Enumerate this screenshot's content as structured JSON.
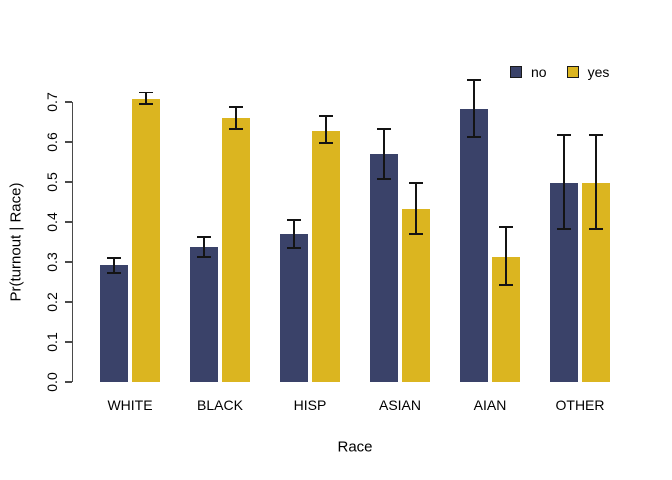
{
  "chart_data": {
    "type": "bar",
    "title": "",
    "xlabel": "Race",
    "ylabel": "Pr(turnout | Race)",
    "categories": [
      "WHITE",
      "BLACK",
      "HISP",
      "ASIAN",
      "AIAN",
      "OTHER"
    ],
    "series": [
      {
        "name": "no",
        "color": "#3A4269",
        "values": [
          0.293,
          0.338,
          0.37,
          0.57,
          0.683,
          0.498
        ],
        "ci_low": [
          0.273,
          0.313,
          0.335,
          0.507,
          0.613,
          0.383
        ],
        "ci_high": [
          0.31,
          0.363,
          0.405,
          0.633,
          0.755,
          0.618
        ]
      },
      {
        "name": "yes",
        "color": "#DBB520",
        "values": [
          0.707,
          0.66,
          0.628,
          0.433,
          0.313,
          0.498
        ],
        "ci_low": [
          0.695,
          0.633,
          0.598,
          0.37,
          0.243,
          0.383
        ],
        "ci_high": [
          0.724,
          0.688,
          0.665,
          0.497,
          0.388,
          0.618
        ]
      }
    ],
    "y_ticks": [
      0.0,
      0.1,
      0.2,
      0.3,
      0.4,
      0.5,
      0.6,
      0.7
    ],
    "ylim": [
      0,
      0.7
    ],
    "error_bars": true,
    "grid": false,
    "legend_position": "top-right",
    "axis_color": "#4a4a4a"
  }
}
